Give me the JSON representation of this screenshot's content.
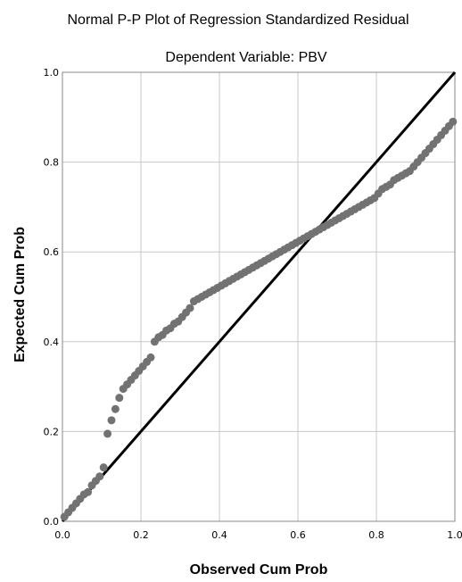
{
  "chart_data": {
    "type": "scatter",
    "title": "Normal P-P Plot of Regression Standardized Residual",
    "subtitle": "Dependent Variable: PBV",
    "xlabel": "Observed Cum Prob",
    "ylabel": "Expected Cum Prob",
    "xlim": [
      0,
      1
    ],
    "ylim": [
      0,
      1
    ],
    "xticks": [
      "0.0",
      "0.2",
      "0.4",
      "0.6",
      "0.8",
      "1.0"
    ],
    "yticks": [
      "0.0",
      "0.2",
      "0.4",
      "0.6",
      "0.8",
      "1.0"
    ],
    "grid": true,
    "reference_line": {
      "from": [
        0,
        0
      ],
      "to": [
        1,
        1
      ]
    },
    "point_color": "#727272",
    "line_color": "#000000",
    "series": [
      {
        "x": [
          0.005,
          0.015,
          0.025,
          0.035,
          0.045,
          0.055,
          0.065,
          0.075,
          0.085,
          0.095,
          0.105,
          0.115,
          0.125,
          0.135,
          0.145,
          0.155,
          0.165,
          0.175,
          0.185,
          0.195,
          0.205,
          0.215,
          0.225,
          0.235,
          0.245,
          0.255,
          0.265,
          0.275,
          0.285,
          0.295,
          0.305,
          0.315,
          0.325,
          0.335,
          0.345,
          0.355,
          0.365,
          0.375,
          0.385,
          0.395,
          0.405,
          0.415,
          0.425,
          0.435,
          0.445,
          0.455,
          0.465,
          0.475,
          0.485,
          0.495,
          0.505,
          0.515,
          0.525,
          0.535,
          0.545,
          0.555,
          0.565,
          0.575,
          0.585,
          0.595,
          0.605,
          0.615,
          0.625,
          0.635,
          0.645,
          0.655,
          0.665,
          0.675,
          0.685,
          0.695,
          0.705,
          0.715,
          0.725,
          0.735,
          0.745,
          0.755,
          0.765,
          0.775,
          0.785,
          0.795,
          0.805,
          0.815,
          0.825,
          0.835,
          0.845,
          0.855,
          0.865,
          0.875,
          0.885,
          0.895,
          0.905,
          0.915,
          0.925,
          0.935,
          0.945,
          0.955,
          0.965,
          0.975,
          0.985,
          0.995
        ],
        "y": [
          0.01,
          0.02,
          0.03,
          0.04,
          0.05,
          0.06,
          0.065,
          0.08,
          0.09,
          0.1,
          0.12,
          0.195,
          0.225,
          0.25,
          0.275,
          0.295,
          0.305,
          0.315,
          0.325,
          0.335,
          0.345,
          0.355,
          0.365,
          0.4,
          0.41,
          0.415,
          0.425,
          0.43,
          0.44,
          0.445,
          0.455,
          0.465,
          0.475,
          0.49,
          0.495,
          0.5,
          0.505,
          0.51,
          0.515,
          0.52,
          0.525,
          0.53,
          0.535,
          0.54,
          0.545,
          0.55,
          0.555,
          0.56,
          0.565,
          0.57,
          0.575,
          0.58,
          0.585,
          0.59,
          0.595,
          0.6,
          0.605,
          0.61,
          0.615,
          0.62,
          0.625,
          0.63,
          0.635,
          0.64,
          0.645,
          0.65,
          0.655,
          0.66,
          0.665,
          0.67,
          0.675,
          0.68,
          0.685,
          0.69,
          0.695,
          0.7,
          0.705,
          0.71,
          0.715,
          0.72,
          0.73,
          0.74,
          0.745,
          0.75,
          0.76,
          0.765,
          0.77,
          0.775,
          0.78,
          0.79,
          0.8,
          0.81,
          0.82,
          0.83,
          0.84,
          0.85,
          0.86,
          0.87,
          0.88,
          0.89
        ]
      }
    ]
  }
}
